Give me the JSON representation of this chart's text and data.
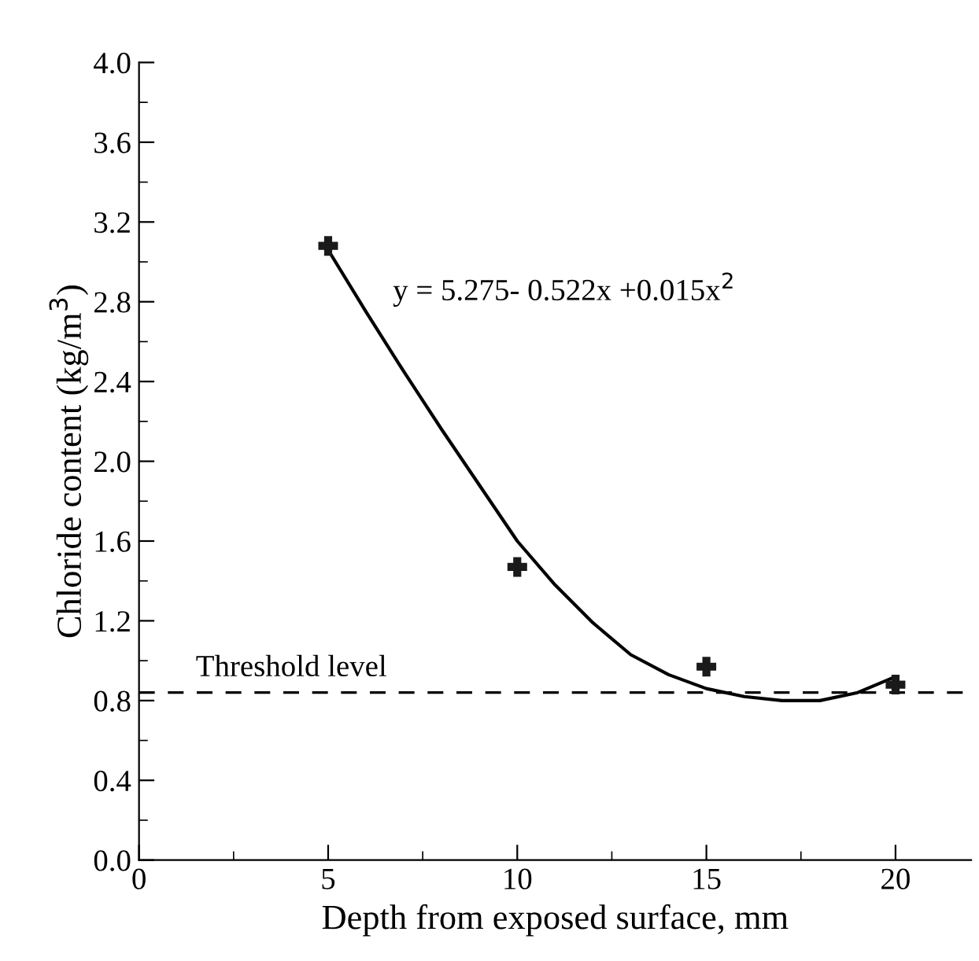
{
  "chart_data": {
    "type": "scatter",
    "xlabel": "Depth from exposed surface, mm",
    "ylabel": "Chloride content (kg/m$^{3}$)",
    "series": [
      {
        "color": "#1a1a1a",
        "marker": "cross",
        "x": [
          5,
          10,
          15,
          20
        ],
        "values": [
          3.08,
          1.47,
          0.97,
          0.88
        ]
      },
      {
        "type": "line",
        "color": "#000000",
        "marker": "none",
        "line_style": "solid",
        "x": [
          5,
          6,
          7,
          8,
          9,
          10,
          11,
          12,
          13,
          14,
          15,
          16,
          17,
          18,
          19,
          20
        ],
        "values": [
          3.06,
          2.75,
          2.45,
          2.16,
          1.88,
          1.6,
          1.38,
          1.19,
          1.03,
          0.93,
          0.86,
          0.82,
          0.8,
          0.8,
          0.84,
          0.92
        ]
      }
    ],
    "ref_lines": [
      {
        "axis": "y",
        "value": 0.84,
        "label": "Threshold level",
        "color": "#000000",
        "line_style": "dashed"
      }
    ],
    "annotations": [
      "y = 5.275- 0.522x +0.015x$^{2}$"
    ],
    "xlim": [
      0,
      22
    ],
    "xticks": [
      0,
      5,
      10,
      15,
      20
    ],
    "ylim": [
      0,
      4.0
    ],
    "yticks": [
      {
        "value": 0,
        "label": "0.0"
      },
      0.4,
      0.8,
      1.2,
      1.6,
      {
        "value": 2,
        "label": "2.0"
      },
      2.4,
      2.8,
      3.2,
      3.6,
      {
        "value": 4,
        "label": "4.0"
      }
    ],
    "grid": false,
    "legend": false
  }
}
